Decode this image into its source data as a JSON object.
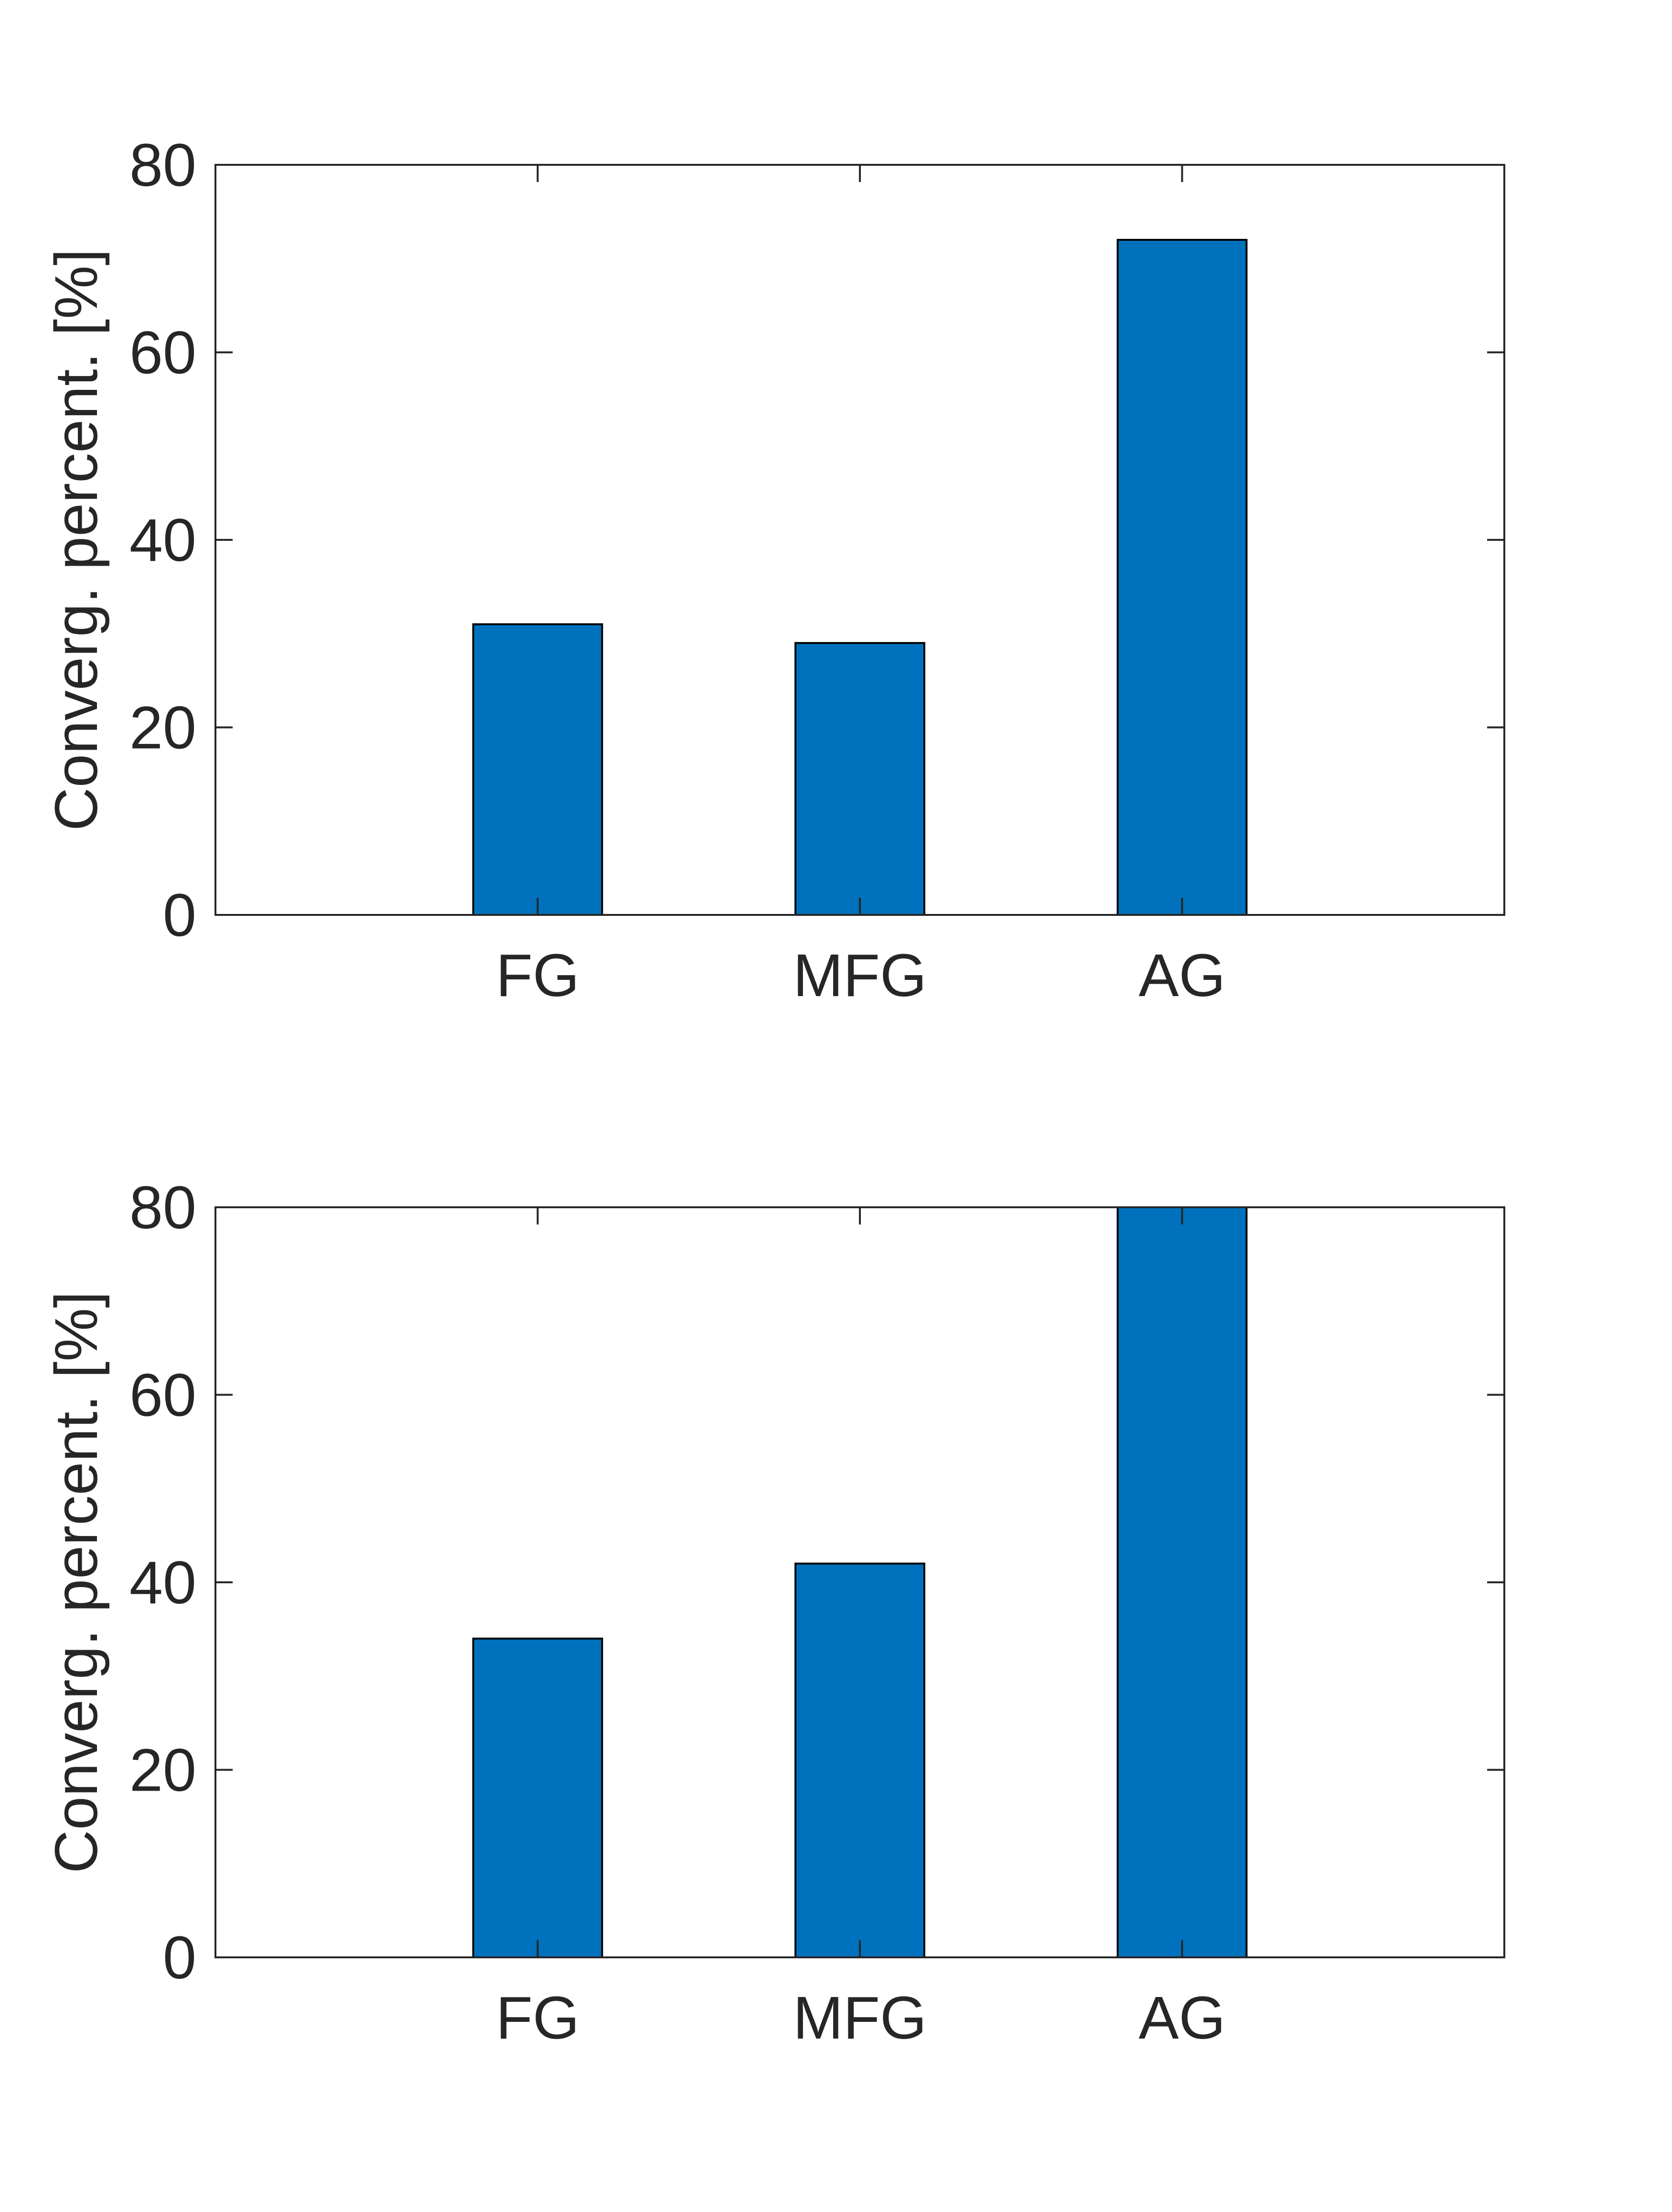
{
  "chart_data": [
    {
      "type": "bar",
      "categories": [
        "FG",
        "MFG",
        "AG"
      ],
      "values": [
        31,
        29,
        72
      ],
      "title": "",
      "xlabel": "",
      "ylabel": "Converg. percent. [%]",
      "ylim": [
        0,
        80
      ],
      "yticks": [
        0,
        20,
        40,
        60,
        80
      ],
      "grid": false,
      "bar_color": "#0072BD",
      "edge_color": "#000000",
      "axis_color": "#262626"
    },
    {
      "type": "bar",
      "categories": [
        "FG",
        "MFG",
        "AG"
      ],
      "values": [
        34,
        42,
        80
      ],
      "title": "",
      "xlabel": "",
      "ylabel": "Converg. percent. [%]",
      "ylim": [
        0,
        80
      ],
      "yticks": [
        0,
        20,
        40,
        60,
        80
      ],
      "grid": false,
      "bar_color": "#0072BD",
      "edge_color": "#000000",
      "axis_color": "#262626"
    }
  ]
}
